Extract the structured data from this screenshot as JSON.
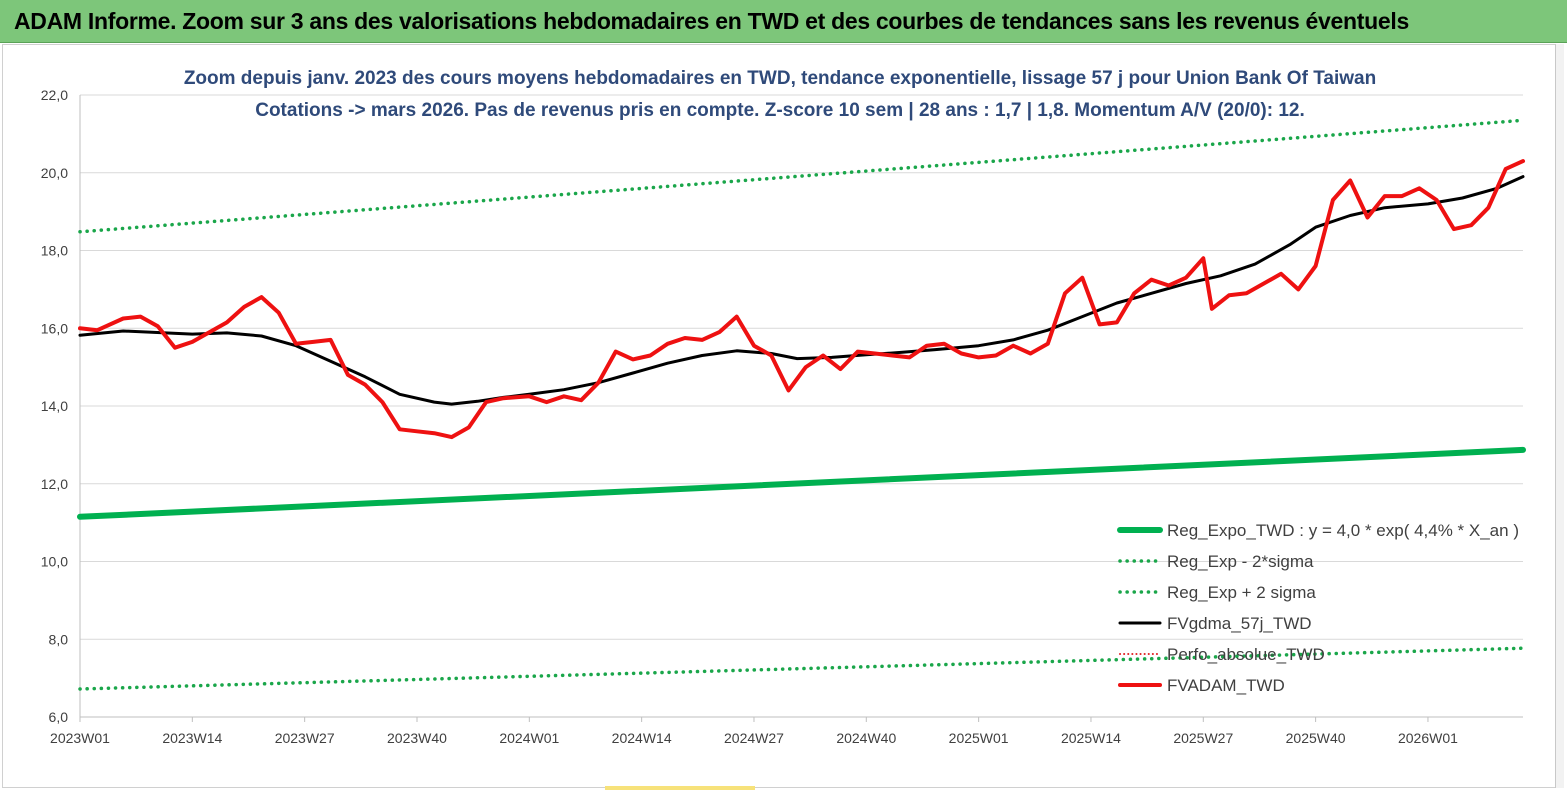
{
  "header": {
    "title": "ADAM Informe. Zoom sur 3 ans des valorisations hebdomadaires en TWD et des courbes de tendances sans les revenus éventuels"
  },
  "colors": {
    "banner": "#7dc67a",
    "reg_expo": "#00b050",
    "sigma": "#1aa64a",
    "fvgdma": "#000000",
    "perfo": "#e02020",
    "fvadam": "#ee1111"
  },
  "chart_data": {
    "type": "line",
    "title": "Zoom depuis janv. 2023 des cours moyens hebdomadaires en TWD, tendance exponentielle, lissage 57 j pour Union Bank Of Taiwan",
    "subtitle": "Cotations -> mars 2026. Pas de revenus pris en compte. Z-score 10 sem | 28 ans : 1,7 | 1,8. Momentum A/V (20/0): 12.",
    "xlabel": "",
    "ylabel": "",
    "ylim": [
      6,
      22
    ],
    "y_ticks": [
      "6,0",
      "8,0",
      "10,0",
      "12,0",
      "14,0",
      "16,0",
      "18,0",
      "20,0",
      "22,0"
    ],
    "x_ticks": [
      "2023W01",
      "2023W14",
      "2023W27",
      "2023W40",
      "2024W01",
      "2024W14",
      "2024W27",
      "2024W40",
      "2025W01",
      "2025W14",
      "2025W27",
      "2025W40",
      "2026W01"
    ],
    "grid": "horizontal",
    "legend_position": "bottom-right",
    "series": [
      {
        "name": "Reg_Expo_TWD : y = 4,0 * exp( 4,4% *  X_an )",
        "style": "solid-thick",
        "x": [
          "2023W01",
          "2026W12"
        ],
        "values": [
          11.15,
          12.87
        ]
      },
      {
        "name": "Reg_Exp - 2*sigma",
        "style": "dotted",
        "x": [
          "2023W01",
          "2026W12"
        ],
        "values": [
          6.72,
          7.77
        ]
      },
      {
        "name": "Reg_Exp + 2 sigma",
        "style": "dotted",
        "x": [
          "2023W01",
          "2026W12"
        ],
        "values": [
          18.48,
          21.35
        ]
      },
      {
        "name": "FVgdma_57j_TWD",
        "style": "solid",
        "x": [
          "2023W01",
          "2023W06",
          "2023W09",
          "2023W14",
          "2023W18",
          "2023W22",
          "2023W26",
          "2023W30",
          "2023W34",
          "2023W38",
          "2023W42",
          "2023W44",
          "2023W47",
          "2023W50",
          "2024W01",
          "2024W05",
          "2024W09",
          "2024W13",
          "2024W17",
          "2024W21",
          "2024W25",
          "2024W29",
          "2024W32",
          "2024W36",
          "2024W40",
          "2024W44",
          "2024W48",
          "2025W01",
          "2025W05",
          "2025W09",
          "2025W13",
          "2025W17",
          "2025W21",
          "2025W25",
          "2025W29",
          "2025W33",
          "2025W37",
          "2025W40",
          "2025W44",
          "2025W48",
          "2026W01",
          "2026W05",
          "2026W09",
          "2026W12"
        ],
        "values": [
          15.82,
          15.93,
          15.9,
          15.85,
          15.88,
          15.8,
          15.55,
          15.15,
          14.75,
          14.3,
          14.1,
          14.05,
          14.12,
          14.22,
          14.3,
          14.42,
          14.6,
          14.85,
          15.1,
          15.3,
          15.42,
          15.35,
          15.22,
          15.25,
          15.32,
          15.38,
          15.45,
          15.55,
          15.7,
          15.95,
          16.3,
          16.65,
          16.9,
          17.15,
          17.35,
          17.65,
          18.15,
          18.6,
          18.9,
          19.1,
          19.2,
          19.35,
          19.6,
          19.9
        ]
      },
      {
        "name": "Perfo_absolue_TWD",
        "style": "dotted",
        "x": [],
        "values": []
      },
      {
        "name": "FVADAM_TWD",
        "style": "solid-thick",
        "x": [
          "2023W01",
          "2023W03",
          "2023W06",
          "2023W08",
          "2023W10",
          "2023W12",
          "2023W14",
          "2023W16",
          "2023W18",
          "2023W20",
          "2023W22",
          "2023W24",
          "2023W26",
          "2023W28",
          "2023W30",
          "2023W32",
          "2023W34",
          "2023W36",
          "2023W38",
          "2023W40",
          "2023W42",
          "2023W44",
          "2023W46",
          "2023W48",
          "2023W50",
          "2024W01",
          "2024W03",
          "2024W05",
          "2024W07",
          "2024W09",
          "2024W11",
          "2024W13",
          "2024W15",
          "2024W17",
          "2024W19",
          "2024W21",
          "2024W23",
          "2024W25",
          "2024W27",
          "2024W29",
          "2024W31",
          "2024W33",
          "2024W35",
          "2024W37",
          "2024W39",
          "2024W41",
          "2024W43",
          "2024W45",
          "2024W47",
          "2024W49",
          "2024W51",
          "2025W01",
          "2025W03",
          "2025W05",
          "2025W07",
          "2025W09",
          "2025W11",
          "2025W13",
          "2025W15",
          "2025W17",
          "2025W19",
          "2025W21",
          "2025W23",
          "2025W25",
          "2025W27",
          "2025W28",
          "2025W30",
          "2025W32",
          "2025W34",
          "2025W36",
          "2025W38",
          "2025W40",
          "2025W42",
          "2025W44",
          "2025W46",
          "2025W48",
          "2025W50",
          "2025W52",
          "2026W02",
          "2026W04",
          "2026W06",
          "2026W08",
          "2026W10",
          "2026W12"
        ],
        "values": [
          16.0,
          15.95,
          16.25,
          16.3,
          16.05,
          15.5,
          15.65,
          15.9,
          16.15,
          16.55,
          16.8,
          16.4,
          15.6,
          15.65,
          15.7,
          14.8,
          14.55,
          14.1,
          13.4,
          13.35,
          13.3,
          13.2,
          13.45,
          14.1,
          14.2,
          14.25,
          14.1,
          14.25,
          14.15,
          14.6,
          15.4,
          15.2,
          15.3,
          15.6,
          15.75,
          15.7,
          15.9,
          16.3,
          15.55,
          15.3,
          14.4,
          15.0,
          15.3,
          14.95,
          15.4,
          15.35,
          15.3,
          15.25,
          15.55,
          15.6,
          15.35,
          15.25,
          15.3,
          15.55,
          15.35,
          15.6,
          16.9,
          17.3,
          16.1,
          16.15,
          16.9,
          17.25,
          17.1,
          17.3,
          17.8,
          16.5,
          16.85,
          16.9,
          17.15,
          17.4,
          17.0,
          17.6,
          19.3,
          19.8,
          18.85,
          19.4,
          19.4,
          19.6,
          19.3,
          18.55,
          18.65,
          19.1,
          20.1,
          20.3
        ]
      }
    ]
  }
}
